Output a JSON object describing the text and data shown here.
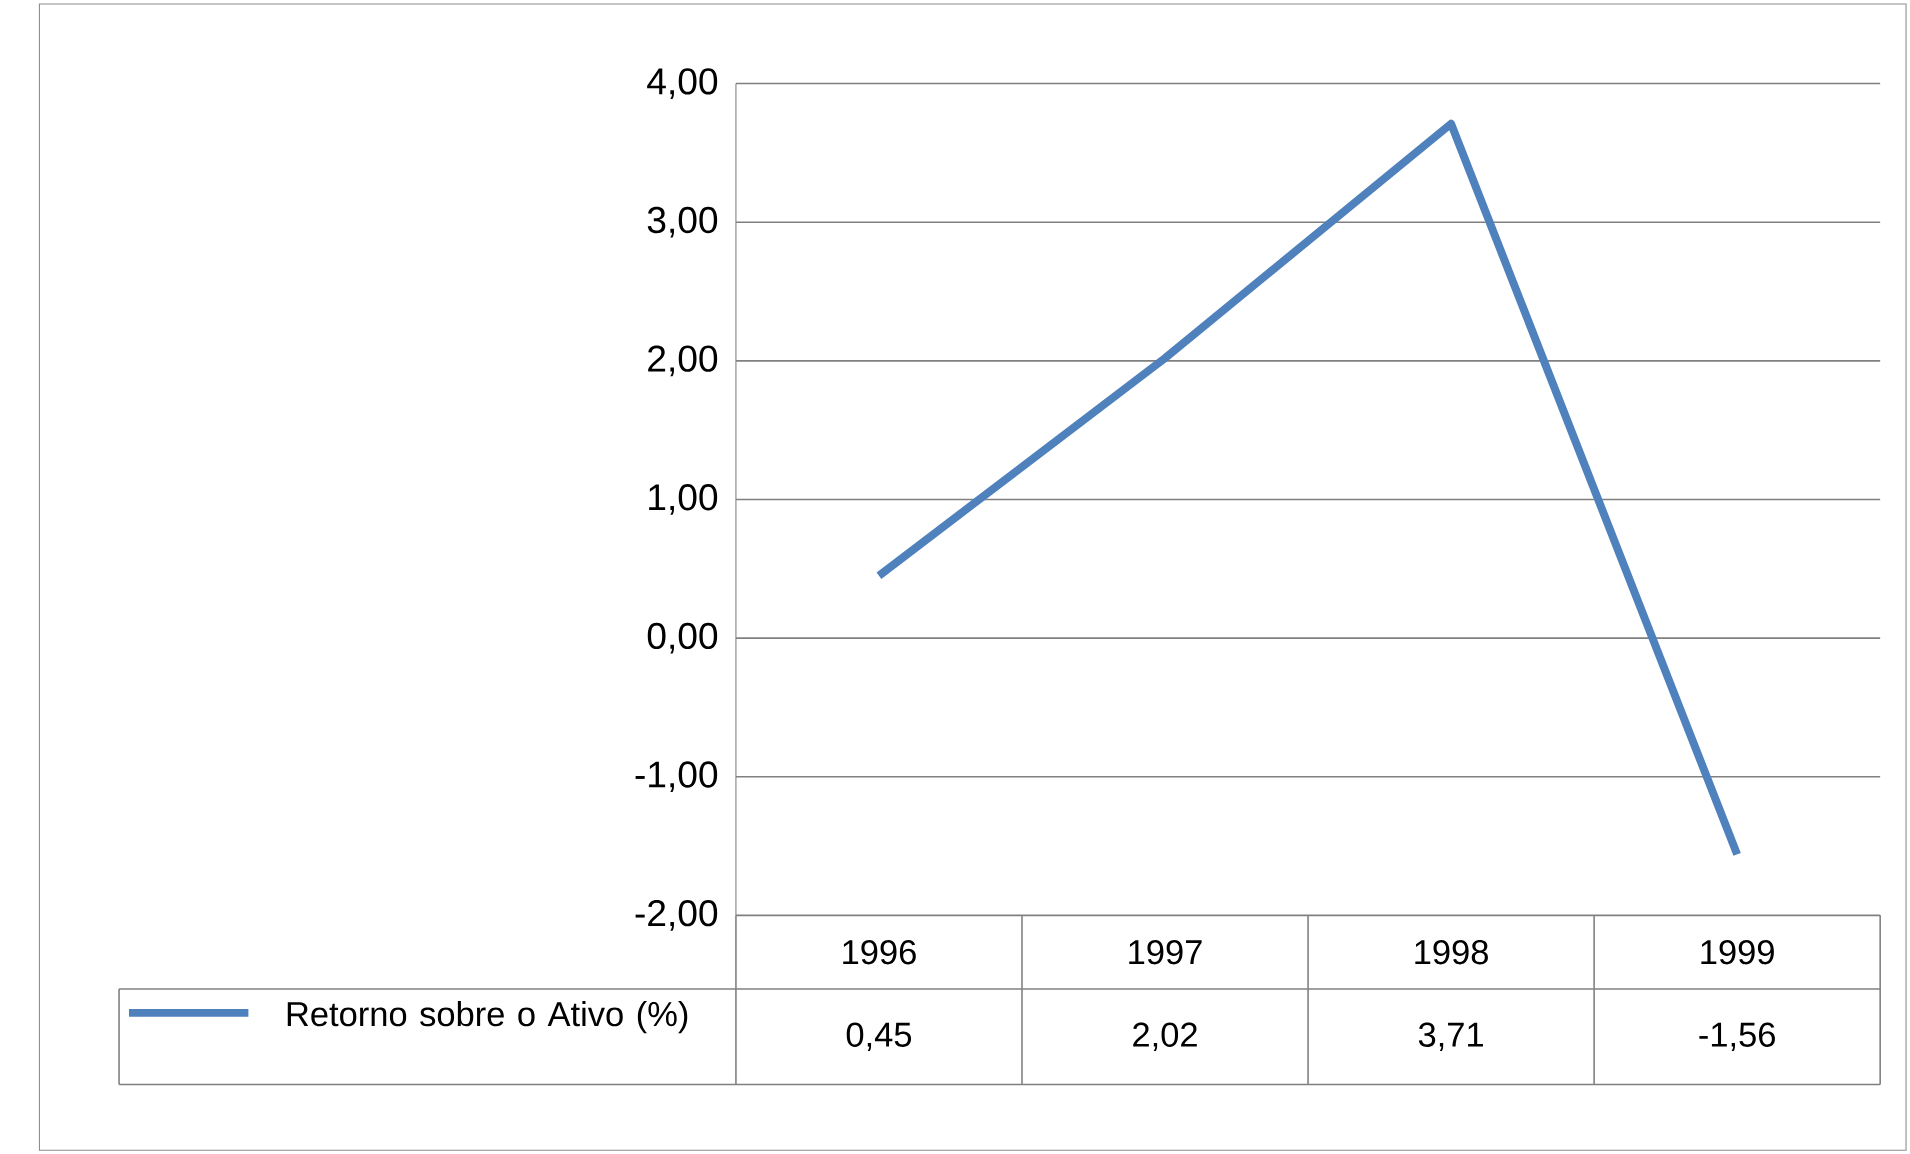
{
  "chart_data": {
    "type": "line",
    "categories": [
      "1996",
      "1997",
      "1998",
      "1999"
    ],
    "series": [
      {
        "name": "Retorno sobre o Ativo (%)",
        "color": "#4f81bd",
        "values": [
          0.45,
          2.02,
          3.71,
          -1.56
        ],
        "value_labels": [
          "0,45",
          "2,02",
          "3,71",
          "-1,56"
        ]
      }
    ],
    "ylim": [
      -2,
      4
    ],
    "yticks": [
      {
        "value": -2,
        "label": "-2,00"
      },
      {
        "value": -1,
        "label": "-1,00"
      },
      {
        "value": 0,
        "label": "0,00"
      },
      {
        "value": 1,
        "label": "1,00"
      },
      {
        "value": 2,
        "label": "2,00"
      },
      {
        "value": 3,
        "label": "3,00"
      },
      {
        "value": 4,
        "label": "4,00"
      }
    ],
    "grid": "y",
    "legend": "bottom",
    "marker": "none",
    "line_style": "solid"
  }
}
